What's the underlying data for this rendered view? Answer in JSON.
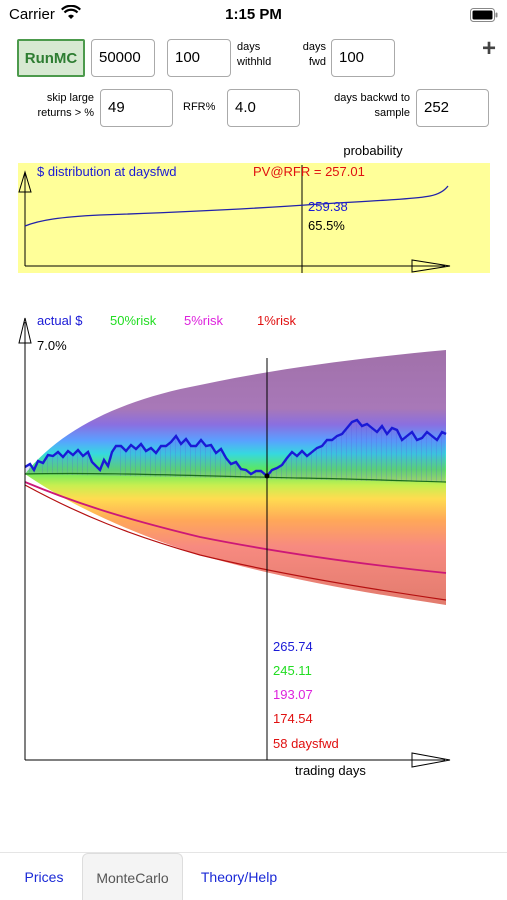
{
  "status": {
    "carrier": "Carrier",
    "time": "1:15 PM"
  },
  "controls": {
    "run_label": "RunMC",
    "amount": "50000",
    "days_withheld": "100",
    "days_withheld_label_1": "days",
    "days_withheld_label_2": "withhld",
    "days_fwd_label_1": "days",
    "days_fwd_label_2": "fwd",
    "days_fwd": "100",
    "plus": "+",
    "skip_label_1": "skip large",
    "skip_label_2": "returns > %",
    "skip_value": "49",
    "rfr_label": "RFR%",
    "rfr_value": "4.0",
    "backwd_label_1": "days backwd to",
    "backwd_label_2": "sample",
    "backwd_value": "252"
  },
  "distribution": {
    "probability_label": "probability",
    "title": "$ distribution at daysfwd",
    "pv_text": "PV@RFR = 257.01",
    "value": "259.38",
    "percent": "65.5%"
  },
  "montecarlo": {
    "legend_actual": "actual $",
    "legend_50": "50%risk",
    "legend_5": "5%risk",
    "legend_1": "1%risk",
    "yield_text": "7.0%",
    "val_actual": "265.74",
    "val_50": "245.11",
    "val_5": "193.07",
    "val_1": "174.54",
    "daysfwd_text": "58 daysfwd",
    "xlabel": "trading days",
    "colors": {
      "actual": "#1a1ad6",
      "risk50": "#22dd22",
      "risk5": "#dd22dd",
      "risk1": "#e01010"
    }
  },
  "tabs": [
    {
      "label": "Prices"
    },
    {
      "label": "MonteCarlo"
    },
    {
      "label": "Theory/Help"
    }
  ]
}
